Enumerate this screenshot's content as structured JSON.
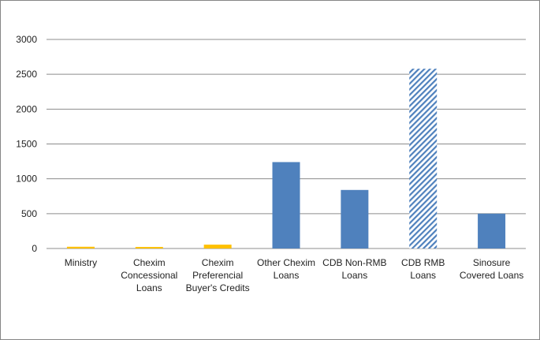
{
  "chart_data": {
    "type": "bar",
    "title": "",
    "xlabel": "",
    "ylabel": "",
    "ylim": [
      0,
      3000
    ],
    "yticks": [
      0,
      500,
      1000,
      1500,
      2000,
      2500,
      3000
    ],
    "grid": true,
    "legend": "none",
    "categories": [
      [
        "Ministry"
      ],
      [
        "Chexim",
        "Concessional",
        "Loans"
      ],
      [
        "Chexim",
        "Preferencial",
        "Buyer's Credits"
      ],
      [
        "Other Chexim",
        "Loans"
      ],
      [
        "CDB Non-RMB",
        "Loans"
      ],
      [
        "CDB RMB",
        "Loans"
      ],
      [
        "Sinosure",
        "Covered Loans"
      ]
    ],
    "values": [
      25,
      22,
      55,
      1240,
      840,
      2580,
      500
    ],
    "bar_styles": [
      "yellow",
      "yellow",
      "yellow",
      "blue",
      "blue",
      "hatched-blue",
      "blue"
    ],
    "colors": {
      "yellow": "#ffc000",
      "blue": "#4f81bd",
      "hatch": "#4f81bd",
      "grid": "#8c8c8c"
    }
  }
}
